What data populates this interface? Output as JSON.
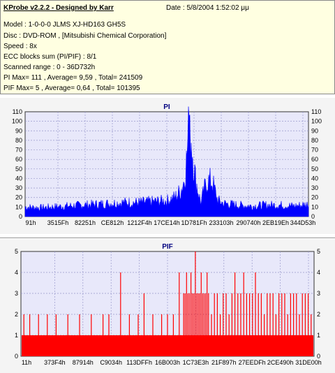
{
  "header": {
    "title": "KProbe v2.2.2 - Designed by Karr",
    "date": "Date : 5/8/2004 1:52:02 μμ",
    "lines": [
      "Model : 1-0-0-0 JLMS    XJ-HD163         GH5S",
      "Disc : DVD-ROM ,  [Mitsubishi Chemical Corporation]",
      "Speed : 8x",
      "ECC blocks sum (PI/PIF) : 8/1",
      "Scanned range : 0 - 36D732h",
      "PI Max= 111 , Average= 9,59 , Total= 241509",
      "PIF Max= 5 , Average= 0,64 , Total= 101395"
    ]
  },
  "colors": {
    "pi_series": "#0000ff",
    "pif_series": "#ff0000",
    "plot_bg": "#e8e8fa",
    "grid": "#9999cc",
    "title": "#000080"
  },
  "chart_data": [
    {
      "type": "area",
      "title": "PI",
      "ylim": [
        0,
        110
      ],
      "yticks": [
        0,
        10,
        20,
        30,
        40,
        50,
        60,
        70,
        80,
        90,
        100,
        110
      ],
      "right_axis": true,
      "grid": "dashed",
      "xtick_labels": [
        "91h",
        "3515Fh",
        "82251h",
        "CE812h",
        "1212F4h",
        "17CE14h",
        "1D781Fh",
        "233103h",
        "290740h",
        "2EB19Eh",
        "344D53h"
      ],
      "x": [
        0,
        0.05,
        0.1,
        0.15,
        0.2,
        0.25,
        0.3,
        0.35,
        0.4,
        0.45,
        0.5,
        0.53,
        0.55,
        0.56,
        0.57,
        0.58,
        0.6,
        0.62,
        0.64,
        0.66,
        0.68,
        0.7,
        0.75,
        0.8,
        0.85,
        0.9,
        0.95,
        1.0
      ],
      "values": [
        11,
        10,
        11,
        12,
        13,
        14,
        15,
        16,
        16,
        17,
        18,
        22,
        30,
        40,
        65,
        111,
        45,
        15,
        40,
        40,
        18,
        15,
        13,
        12,
        13,
        13,
        12,
        14
      ],
      "max": 111,
      "average": 9.59,
      "total": 241509
    },
    {
      "type": "bar",
      "title": "PIF",
      "ylim": [
        0,
        5
      ],
      "yticks": [
        0,
        1,
        2,
        3,
        4,
        5
      ],
      "right_axis": true,
      "grid": "dashed",
      "xtick_labels": [
        "11h",
        "373F4h",
        "87914h",
        "C9034h",
        "113DFFh",
        "16B003h",
        "1C73E3h",
        "21F897h",
        "27EEDFh",
        "2CE490h",
        "31DE00h"
      ],
      "baseline_value": 1,
      "spikes": [
        {
          "x": 0.01,
          "v": 2
        },
        {
          "x": 0.03,
          "v": 2
        },
        {
          "x": 0.06,
          "v": 2
        },
        {
          "x": 0.09,
          "v": 2
        },
        {
          "x": 0.12,
          "v": 2
        },
        {
          "x": 0.16,
          "v": 2
        },
        {
          "x": 0.2,
          "v": 2
        },
        {
          "x": 0.24,
          "v": 2
        },
        {
          "x": 0.28,
          "v": 2
        },
        {
          "x": 0.3,
          "v": 2
        },
        {
          "x": 0.34,
          "v": 4
        },
        {
          "x": 0.37,
          "v": 2
        },
        {
          "x": 0.4,
          "v": 2
        },
        {
          "x": 0.42,
          "v": 3
        },
        {
          "x": 0.45,
          "v": 2
        },
        {
          "x": 0.48,
          "v": 2
        },
        {
          "x": 0.5,
          "v": 2
        },
        {
          "x": 0.52,
          "v": 2
        },
        {
          "x": 0.54,
          "v": 4
        },
        {
          "x": 0.555,
          "v": 3
        },
        {
          "x": 0.56,
          "v": 3
        },
        {
          "x": 0.565,
          "v": 4
        },
        {
          "x": 0.57,
          "v": 3
        },
        {
          "x": 0.575,
          "v": 3
        },
        {
          "x": 0.58,
          "v": 4
        },
        {
          "x": 0.585,
          "v": 3
        },
        {
          "x": 0.59,
          "v": 3
        },
        {
          "x": 0.595,
          "v": 5
        },
        {
          "x": 0.6,
          "v": 3
        },
        {
          "x": 0.605,
          "v": 3
        },
        {
          "x": 0.61,
          "v": 3
        },
        {
          "x": 0.615,
          "v": 4
        },
        {
          "x": 0.62,
          "v": 3
        },
        {
          "x": 0.625,
          "v": 3
        },
        {
          "x": 0.63,
          "v": 3
        },
        {
          "x": 0.635,
          "v": 4
        },
        {
          "x": 0.64,
          "v": 3
        },
        {
          "x": 0.65,
          "v": 2
        },
        {
          "x": 0.66,
          "v": 3
        },
        {
          "x": 0.67,
          "v": 3
        },
        {
          "x": 0.68,
          "v": 2
        },
        {
          "x": 0.69,
          "v": 3
        },
        {
          "x": 0.7,
          "v": 3
        },
        {
          "x": 0.71,
          "v": 2
        },
        {
          "x": 0.72,
          "v": 3
        },
        {
          "x": 0.73,
          "v": 4
        },
        {
          "x": 0.74,
          "v": 3
        },
        {
          "x": 0.75,
          "v": 3
        },
        {
          "x": 0.76,
          "v": 4
        },
        {
          "x": 0.77,
          "v": 3
        },
        {
          "x": 0.78,
          "v": 3
        },
        {
          "x": 0.79,
          "v": 3
        },
        {
          "x": 0.8,
          "v": 4
        },
        {
          "x": 0.81,
          "v": 3
        },
        {
          "x": 0.82,
          "v": 3
        },
        {
          "x": 0.83,
          "v": 2
        },
        {
          "x": 0.84,
          "v": 3
        },
        {
          "x": 0.85,
          "v": 3
        },
        {
          "x": 0.86,
          "v": 3
        },
        {
          "x": 0.87,
          "v": 2
        },
        {
          "x": 0.88,
          "v": 3
        },
        {
          "x": 0.89,
          "v": 3
        },
        {
          "x": 0.9,
          "v": 3
        },
        {
          "x": 0.91,
          "v": 2
        },
        {
          "x": 0.92,
          "v": 3
        },
        {
          "x": 0.93,
          "v": 3
        },
        {
          "x": 0.94,
          "v": 3
        },
        {
          "x": 0.95,
          "v": 2
        },
        {
          "x": 0.96,
          "v": 3
        },
        {
          "x": 0.97,
          "v": 3
        },
        {
          "x": 0.98,
          "v": 3
        },
        {
          "x": 0.99,
          "v": 2
        }
      ],
      "max": 5,
      "average": 0.64,
      "total": 101395
    }
  ]
}
